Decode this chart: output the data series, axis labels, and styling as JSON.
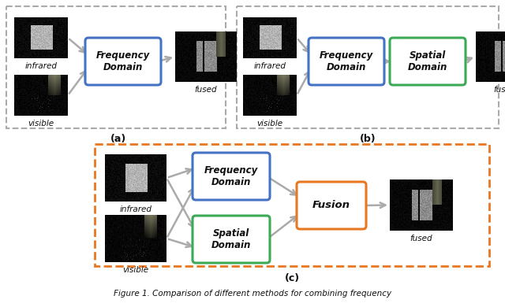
{
  "fig_width": 6.4,
  "fig_height": 3.9,
  "bg_color": "#ffffff",
  "dashed_gray_color": "#aaaaaa",
  "dashed_orange_color": "#E87722",
  "blue_box_color": "#4472C4",
  "green_box_color": "#3aaa55",
  "orange_box_color": "#E87722",
  "arrow_color": "#aaaaaa",
  "text_color": "#111111",
  "label_a": "(a)",
  "label_b": "(b)",
  "label_c": "(c)",
  "caption": "Figure 1. Comparison of different methods for combining frequency"
}
